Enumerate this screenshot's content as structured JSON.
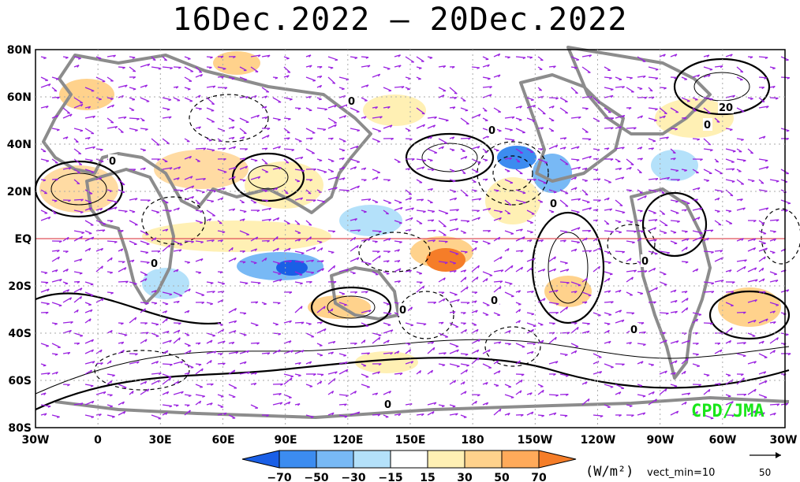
{
  "title": "16Dec.2022 – 20Dec.2022",
  "credit": "CPD/JMA",
  "map": {
    "lat_labels": [
      "80N",
      "60N",
      "40N",
      "20N",
      "EQ",
      "20S",
      "40S",
      "60S",
      "80S"
    ],
    "lon_labels": [
      "30W",
      "0",
      "30E",
      "60E",
      "90E",
      "120E",
      "150E",
      "180",
      "150W",
      "120W",
      "90W",
      "60W",
      "30W"
    ],
    "contour_zero_label": "0",
    "contour_label_20": "20",
    "equator_color": "#e0505a",
    "land_color": "#8c8c8c",
    "vector_color": "#9a21e0"
  },
  "colorbar": {
    "units": "(W/m²)",
    "tick_labels": [
      "−70",
      "−50",
      "−30",
      "−15",
      "15",
      "30",
      "50",
      "70"
    ],
    "colors": [
      "#1a5fe6",
      "#3c8cf0",
      "#78b9f5",
      "#b4e1fa",
      "#ffffff",
      "#fff0b4",
      "#ffd28c",
      "#ffaa5a",
      "#f57d28"
    ]
  },
  "vector_min_label": "vect_min=10",
  "reference_vector": {
    "magnitude": "50"
  }
}
